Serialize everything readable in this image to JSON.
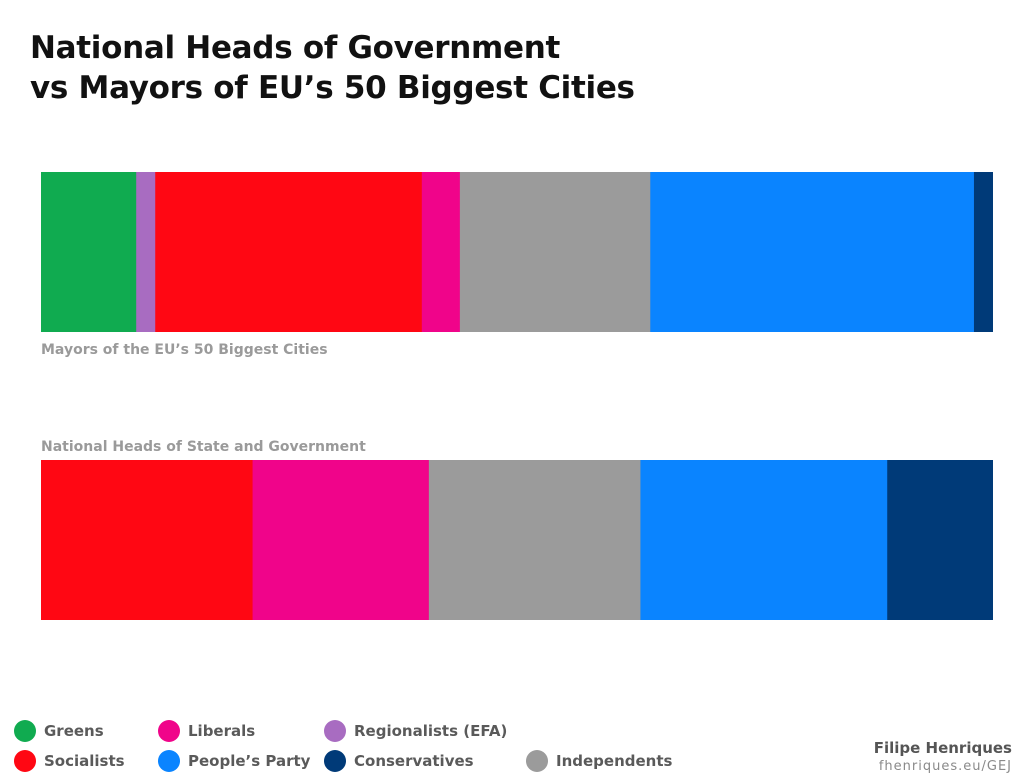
{
  "title": {
    "line1": "National Heads of Government",
    "line2": "vs Mayors of EU’s 50 Biggest Cities"
  },
  "chart_data": {
    "type": "bar",
    "orientation": "horizontal",
    "stacked": "percent",
    "title": "National Heads of Government vs Mayors of EU’s 50 Biggest Cities",
    "categories": [
      "Mayors of the EU’s 50 Biggest Cities",
      "National Heads of State and Government"
    ],
    "series": [
      {
        "name": "Greens",
        "color": "#10ab50",
        "values": [
          5,
          0
        ]
      },
      {
        "name": "Regionalists (EFA)",
        "color": "#a86cc1",
        "values": [
          1,
          0
        ]
      },
      {
        "name": "Socialists",
        "color": "#ff0713",
        "values": [
          14,
          6
        ]
      },
      {
        "name": "Liberals",
        "color": "#f0048a",
        "values": [
          2,
          5
        ]
      },
      {
        "name": "Independents",
        "color": "#9b9b9b",
        "values": [
          10,
          6
        ]
      },
      {
        "name": "People’s Party",
        "color": "#0a84ff",
        "values": [
          17,
          7
        ]
      },
      {
        "name": "Conservatives",
        "color": "#003a78",
        "values": [
          1,
          3
        ]
      }
    ],
    "grid": false,
    "legend_position": "bottom"
  },
  "legend": {
    "items": [
      {
        "name": "Greens",
        "color": "#10ab50"
      },
      {
        "name": "Liberals",
        "color": "#f0048a"
      },
      {
        "name": "Regionalists (EFA)",
        "color": "#a86cc1"
      },
      {
        "name": "Socialists",
        "color": "#ff0713"
      },
      {
        "name": "People’s Party",
        "color": "#0a84ff"
      },
      {
        "name": "Conservatives",
        "color": "#003a78"
      },
      {
        "name": "Independents",
        "color": "#9b9b9b"
      }
    ]
  },
  "credit": {
    "name": "Filipe Henriques",
    "url": "fhenriques.eu/GEJ"
  }
}
